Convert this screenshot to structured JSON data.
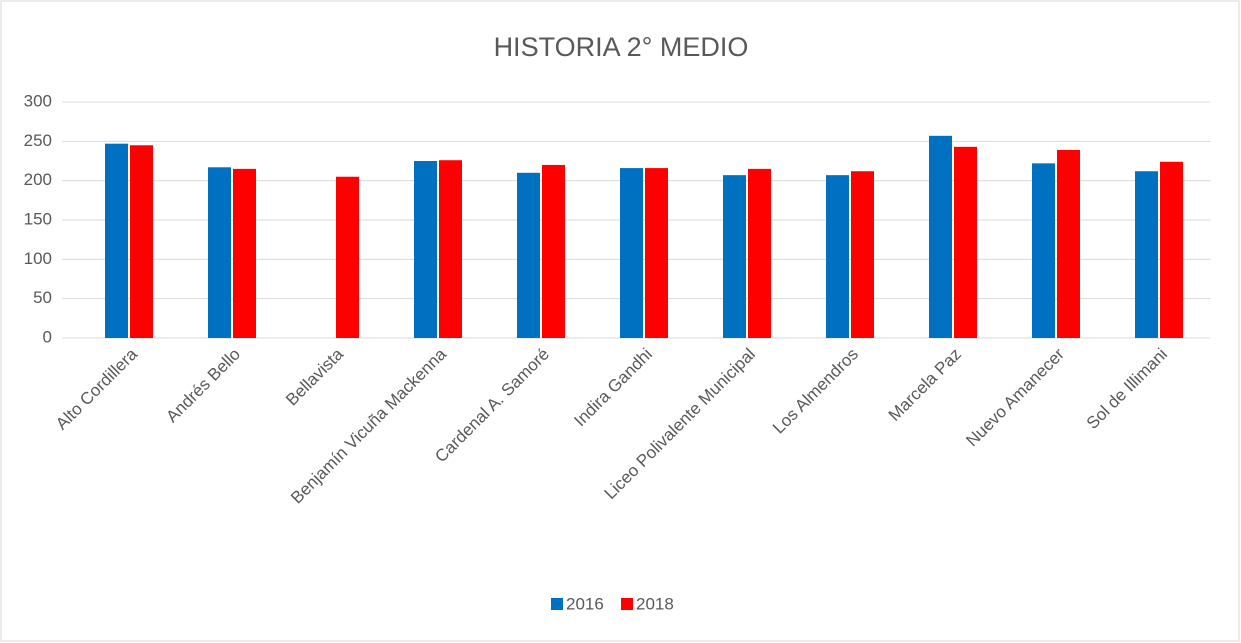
{
  "chart_data": {
    "type": "bar",
    "title": "HISTORIA 2° MEDIO",
    "categories": [
      "Alto Cordillera",
      "Andrés Bello",
      "Bellavista",
      "Benjamín Vicuña Mackenna",
      "Cardenal A. Samoré",
      "Indira Gandhi",
      "Liceo Polivalente Municipal",
      "Los Almendros",
      "Marcela Paz",
      "Nuevo Amanecer",
      "Sol de Illimani"
    ],
    "series": [
      {
        "name": "2016",
        "color": "#0070c0",
        "values": [
          247,
          217,
          null,
          225,
          210,
          216,
          207,
          207,
          257,
          222,
          212
        ]
      },
      {
        "name": "2018",
        "color": "#ff0000",
        "values": [
          245,
          215,
          205,
          226,
          220,
          216,
          215,
          212,
          243,
          239,
          224
        ]
      }
    ],
    "ylim": [
      0,
      300
    ],
    "yticks": [
      0,
      50,
      100,
      150,
      200,
      250,
      300
    ],
    "grid": true,
    "legend": "bottom"
  }
}
